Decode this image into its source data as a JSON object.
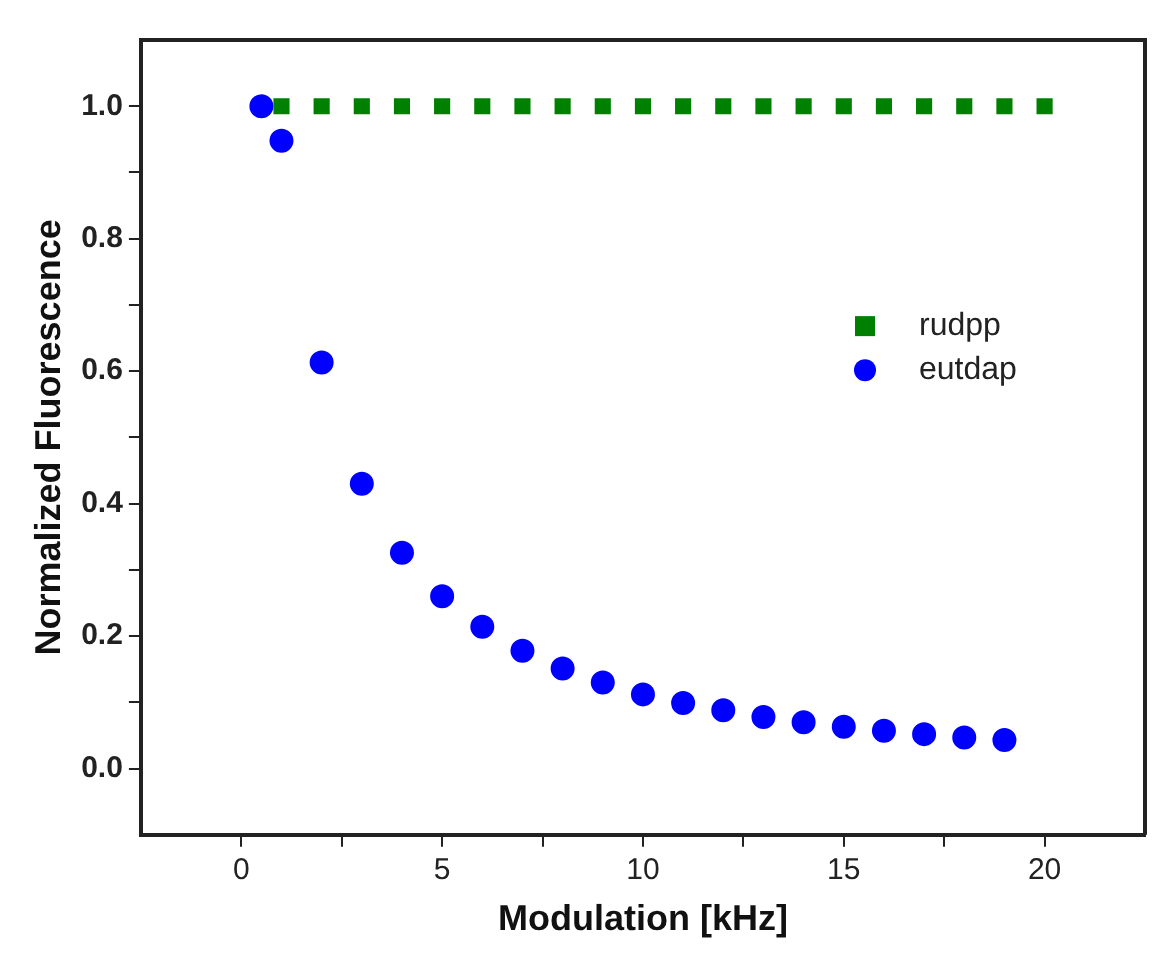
{
  "chart_data": {
    "type": "scatter",
    "xlabel": "Modulation [kHz]",
    "ylabel": "Normalized Fluorescence",
    "xlim": [
      -2.5,
      22.5
    ],
    "ylim": [
      -0.1,
      1.1
    ],
    "xticks": [
      0,
      {
        "value": 2.5,
        "label": null
      },
      5,
      {
        "value": 7.5,
        "label": null
      },
      10,
      {
        "value": 12.5,
        "label": null
      },
      15,
      {
        "value": 17.5,
        "label": null
      },
      20
    ],
    "yticks": [
      {
        "value": 0,
        "label": "0.0"
      },
      {
        "value": 0.1,
        "label": null
      },
      {
        "value": 0.2,
        "label": "0.2"
      },
      {
        "value": 0.3,
        "label": null
      },
      {
        "value": 0.4,
        "label": "0.4"
      },
      {
        "value": 0.5,
        "label": null
      },
      {
        "value": 0.6,
        "label": "0.6"
      },
      {
        "value": 0.7,
        "label": null
      },
      {
        "value": 0.8,
        "label": "0.8"
      },
      {
        "value": 0.9,
        "label": null
      },
      {
        "value": 1,
        "label": "1.0"
      }
    ],
    "grid": false,
    "legend": "right",
    "series": [
      {
        "name": "rudpp",
        "color": "#008000",
        "marker": "square",
        "x": [
          1,
          2,
          3,
          4,
          5,
          6,
          7,
          8,
          9,
          10,
          11,
          12,
          13,
          14,
          15,
          16,
          17,
          18,
          19,
          20
        ],
        "values": [
          1,
          1,
          1,
          1,
          1,
          1,
          1,
          1,
          1,
          1,
          1,
          1,
          1,
          1,
          1,
          1,
          1,
          1,
          1,
          1
        ]
      },
      {
        "name": "eutdap",
        "color": "#0000ff",
        "marker": "circle",
        "x": [
          0.5,
          1,
          2,
          3,
          4,
          5,
          6,
          7,
          8,
          9,
          10,
          11,
          12,
          13,
          14,
          15,
          16,
          17,
          18,
          19
        ],
        "values": [
          1.0,
          0.948,
          0.613,
          0.43,
          0.326,
          0.26,
          0.214,
          0.178,
          0.151,
          0.13,
          0.112,
          0.099,
          0.088,
          0.078,
          0.07,
          0.063,
          0.057,
          0.052,
          0.047,
          0.043
        ]
      }
    ]
  }
}
